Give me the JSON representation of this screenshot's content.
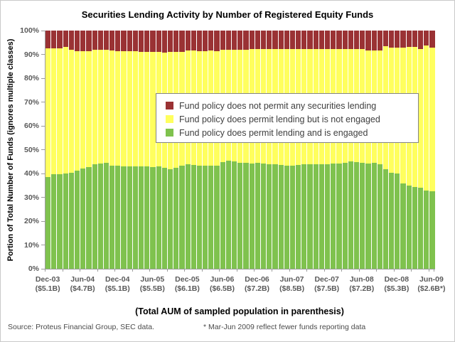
{
  "footer": {
    "source": "Source: Proteus Financial Group, SEC data.",
    "note": "* Mar-Jun 2009 reflect fewer funds reporting data"
  },
  "chart_data": {
    "type": "bar",
    "stacked": true,
    "title": "Securities Lending Activity by Number of Registered Equity Funds",
    "ylabel": "Portion of Total Number of Funds (ignores multiple classes)",
    "xlabel": "(Total AUM of sampled population in parenthesis)",
    "ylim": [
      0,
      100
    ],
    "ytick_step": 10,
    "ytick_labels": [
      "0%",
      "10%",
      "20%",
      "30%",
      "40%",
      "50%",
      "60%",
      "70%",
      "80%",
      "90%",
      "100%"
    ],
    "grid": false,
    "legend_position": "inside-upper-middle",
    "bar_count": 67,
    "x_period": "monthly, Dec-2003 through Jun-2009, labeled every 6 months",
    "categories": [
      {
        "period": "Dec-03",
        "aum": "($5.1B)"
      },
      {
        "period": "Jun-04",
        "aum": "($4.7B)"
      },
      {
        "period": "Dec-04",
        "aum": "($5.1B)"
      },
      {
        "period": "Jun-05",
        "aum": "($5.5B)"
      },
      {
        "period": "Dec-05",
        "aum": "($6.1B)"
      },
      {
        "period": "Jun-06",
        "aum": "($6.5B)"
      },
      {
        "period": "Dec-06",
        "aum": "($7.2B)"
      },
      {
        "period": "Jun-07",
        "aum": "($8.5B)"
      },
      {
        "period": "Dec-07",
        "aum": "($7.5B)"
      },
      {
        "period": "Jun-08",
        "aum": "($7.2B)"
      },
      {
        "period": "Dec-08",
        "aum": "($5.3B)"
      },
      {
        "period": "Jun-09",
        "aum": "($2.6B*)"
      }
    ],
    "series": [
      {
        "name": "Fund policy does not permit any securities lending",
        "color": "#9a3234",
        "stack_order": "top",
        "values": [
          7.5,
          7.5,
          7.5,
          7.0,
          8.0,
          8.7,
          8.7,
          8.7,
          8.2,
          8.2,
          8.2,
          8.2,
          8.5,
          8.5,
          8.5,
          8.5,
          8.8,
          8.8,
          8.8,
          8.8,
          9.3,
          9.0,
          9.0,
          9.0,
          8.5,
          8.5,
          8.5,
          8.5,
          8.5,
          8.5,
          8.0,
          8.0,
          8.0,
          8.0,
          8.0,
          7.8,
          7.8,
          7.8,
          7.8,
          7.8,
          7.8,
          7.8,
          7.8,
          7.8,
          7.8,
          7.7,
          7.7,
          7.7,
          7.7,
          7.7,
          7.7,
          7.7,
          7.7,
          7.7,
          7.7,
          8.4,
          8.4,
          8.4,
          6.7,
          7.3,
          7.3,
          7.3,
          6.8,
          6.8,
          7.8,
          6.3,
          7.3
        ]
      },
      {
        "name": "Fund policy does permit lending but is not engaged",
        "color": "#ffff5e",
        "stack_order": "middle",
        "values": [
          54.0,
          52.8,
          52.8,
          52.9,
          51.6,
          50.1,
          49.2,
          48.7,
          47.9,
          47.7,
          47.4,
          48.4,
          48.1,
          48.6,
          48.6,
          48.4,
          48.1,
          48.3,
          48.6,
          48.3,
          48.4,
          49.1,
          48.7,
          47.6,
          47.6,
          47.8,
          48.1,
          48.1,
          48.3,
          48.1,
          47.2,
          46.7,
          46.9,
          47.4,
          47.6,
          48.1,
          47.8,
          48.1,
          48.3,
          48.3,
          48.6,
          48.8,
          48.8,
          48.6,
          48.3,
          48.4,
          48.4,
          48.4,
          48.4,
          48.2,
          48.2,
          47.9,
          47.2,
          47.5,
          47.9,
          47.5,
          47.1,
          47.7,
          51.4,
          52.3,
          52.7,
          56.8,
          58.2,
          58.8,
          58.2,
          60.8,
          60.2
        ]
      },
      {
        "name": "Fund policy does permit lending and is engaged",
        "color": "#7fc24e",
        "stack_order": "bottom",
        "values": [
          38.5,
          39.7,
          39.7,
          40.1,
          40.4,
          41.2,
          42.1,
          42.6,
          43.9,
          44.1,
          44.4,
          43.4,
          43.4,
          42.9,
          42.9,
          43.1,
          43.1,
          42.9,
          42.6,
          42.9,
          42.3,
          41.9,
          42.3,
          43.4,
          43.9,
          43.7,
          43.4,
          43.4,
          43.2,
          43.4,
          44.8,
          45.3,
          45.1,
          44.6,
          44.4,
          44.1,
          44.4,
          44.1,
          43.9,
          43.9,
          43.6,
          43.4,
          43.4,
          43.6,
          43.9,
          43.9,
          43.9,
          43.9,
          43.9,
          44.1,
          44.1,
          44.4,
          45.1,
          44.8,
          44.4,
          44.1,
          44.5,
          43.9,
          41.9,
          40.4,
          40.0,
          35.9,
          35.0,
          34.4,
          34.0,
          32.9,
          32.5
        ]
      }
    ],
    "colors": {
      "not_permit": "#9a3234",
      "permit_not_engaged": "#ffff5e",
      "permit_engaged": "#7fc24e",
      "axis": "#9c9c9c",
      "tick_text": "#595959"
    }
  }
}
